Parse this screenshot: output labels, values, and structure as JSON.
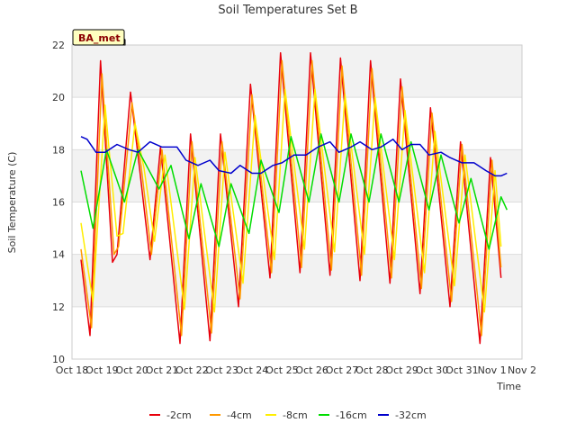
{
  "chart_data": {
    "type": "line",
    "title": "Soil Temperatures Set B",
    "xlabel": "Time",
    "ylabel": "Soil Temperature (C)",
    "badge": "BA_met",
    "ylim": [
      10,
      22
    ],
    "yticks": [
      10,
      12,
      14,
      16,
      18,
      20,
      22
    ],
    "xlim": [
      0,
      15
    ],
    "xticks": [
      {
        "x": 0,
        "label": "Oct 18"
      },
      {
        "x": 1,
        "label": "Oct 19"
      },
      {
        "x": 2,
        "label": "Oct 20"
      },
      {
        "x": 3,
        "label": "Oct 21"
      },
      {
        "x": 4,
        "label": "Oct 22"
      },
      {
        "x": 5,
        "label": "Oct 23"
      },
      {
        "x": 6,
        "label": "Oct 24"
      },
      {
        "x": 7,
        "label": "Oct 25"
      },
      {
        "x": 8,
        "label": "Oct 26"
      },
      {
        "x": 9,
        "label": "Oct 27"
      },
      {
        "x": 10,
        "label": "Oct 28"
      },
      {
        "x": 11,
        "label": "Oct 29"
      },
      {
        "x": 12,
        "label": "Oct 30"
      },
      {
        "x": 13,
        "label": "Oct 31"
      },
      {
        "x": 14,
        "label": "Nov 1"
      },
      {
        "x": 15,
        "label": "Nov 2"
      }
    ],
    "grid": true,
    "legend_position": "bottom",
    "series": [
      {
        "name": "-2cm",
        "color": "#e8000b",
        "points": [
          [
            0.3,
            13.8
          ],
          [
            0.6,
            10.9
          ],
          [
            0.95,
            21.4
          ],
          [
            1.35,
            13.7
          ],
          [
            1.5,
            14.0
          ],
          [
            1.95,
            20.2
          ],
          [
            2.25,
            17.3
          ],
          [
            2.6,
            13.8
          ],
          [
            2.95,
            18.1
          ],
          [
            3.6,
            10.6
          ],
          [
            3.95,
            18.6
          ],
          [
            4.6,
            10.7
          ],
          [
            4.95,
            18.6
          ],
          [
            5.55,
            12.0
          ],
          [
            5.95,
            20.5
          ],
          [
            6.6,
            13.1
          ],
          [
            6.95,
            21.7
          ],
          [
            7.6,
            13.3
          ],
          [
            7.95,
            21.7
          ],
          [
            8.6,
            13.2
          ],
          [
            8.95,
            21.5
          ],
          [
            9.6,
            13.0
          ],
          [
            9.95,
            21.4
          ],
          [
            10.6,
            12.9
          ],
          [
            10.95,
            20.7
          ],
          [
            11.6,
            12.5
          ],
          [
            11.95,
            19.6
          ],
          [
            12.6,
            12.0
          ],
          [
            12.95,
            18.3
          ],
          [
            13.6,
            10.6
          ],
          [
            13.95,
            17.7
          ],
          [
            14.3,
            13.1
          ]
        ]
      },
      {
        "name": "-4cm",
        "color": "#ff9900",
        "points": [
          [
            0.3,
            14.2
          ],
          [
            0.65,
            11.2
          ],
          [
            1.0,
            20.9
          ],
          [
            1.4,
            14.0
          ],
          [
            1.55,
            14.3
          ],
          [
            2.0,
            19.8
          ],
          [
            2.3,
            17.4
          ],
          [
            2.65,
            14.0
          ],
          [
            3.0,
            18.0
          ],
          [
            3.65,
            10.9
          ],
          [
            4.0,
            18.3
          ],
          [
            4.65,
            11.0
          ],
          [
            5.0,
            18.3
          ],
          [
            5.6,
            12.3
          ],
          [
            6.0,
            20.1
          ],
          [
            6.65,
            13.3
          ],
          [
            7.0,
            21.4
          ],
          [
            7.65,
            13.5
          ],
          [
            8.0,
            21.4
          ],
          [
            8.65,
            13.4
          ],
          [
            9.0,
            21.2
          ],
          [
            9.65,
            13.2
          ],
          [
            10.0,
            21.1
          ],
          [
            10.65,
            13.1
          ],
          [
            11.0,
            20.4
          ],
          [
            11.65,
            12.7
          ],
          [
            12.0,
            19.4
          ],
          [
            12.65,
            12.2
          ],
          [
            13.0,
            18.2
          ],
          [
            13.65,
            10.9
          ],
          [
            14.0,
            17.6
          ],
          [
            14.3,
            13.5
          ]
        ]
      },
      {
        "name": "-8cm",
        "color": "#ffee00",
        "points": [
          [
            0.3,
            15.2
          ],
          [
            0.7,
            12.2
          ],
          [
            1.1,
            19.7
          ],
          [
            1.5,
            14.7
          ],
          [
            1.7,
            14.8
          ],
          [
            2.1,
            19.0
          ],
          [
            2.4,
            17.3
          ],
          [
            2.75,
            14.5
          ],
          [
            3.1,
            17.8
          ],
          [
            3.75,
            11.9
          ],
          [
            4.1,
            17.7
          ],
          [
            4.75,
            11.8
          ],
          [
            5.1,
            17.9
          ],
          [
            5.7,
            12.9
          ],
          [
            6.1,
            19.3
          ],
          [
            6.75,
            13.8
          ],
          [
            7.1,
            20.3
          ],
          [
            7.75,
            14.2
          ],
          [
            8.1,
            20.3
          ],
          [
            8.75,
            14.1
          ],
          [
            9.1,
            20.1
          ],
          [
            9.75,
            14.0
          ],
          [
            10.1,
            20.0
          ],
          [
            10.75,
            13.8
          ],
          [
            11.1,
            19.5
          ],
          [
            11.75,
            13.3
          ],
          [
            12.1,
            18.7
          ],
          [
            12.75,
            12.8
          ],
          [
            13.1,
            17.8
          ],
          [
            13.75,
            11.8
          ],
          [
            14.1,
            17.2
          ],
          [
            14.3,
            14.3
          ]
        ]
      },
      {
        "name": "-16cm",
        "color": "#00dd00",
        "points": [
          [
            0.3,
            17.2
          ],
          [
            0.7,
            15.0
          ],
          [
            1.15,
            18.0
          ],
          [
            1.75,
            16.0
          ],
          [
            2.2,
            18.0
          ],
          [
            2.9,
            16.5
          ],
          [
            3.3,
            17.4
          ],
          [
            3.9,
            14.6
          ],
          [
            4.3,
            16.7
          ],
          [
            4.9,
            14.3
          ],
          [
            5.3,
            16.7
          ],
          [
            5.9,
            14.8
          ],
          [
            6.3,
            17.6
          ],
          [
            6.9,
            15.6
          ],
          [
            7.3,
            18.5
          ],
          [
            7.9,
            16.0
          ],
          [
            8.3,
            18.6
          ],
          [
            8.9,
            16.0
          ],
          [
            9.3,
            18.6
          ],
          [
            9.9,
            16.0
          ],
          [
            10.3,
            18.6
          ],
          [
            10.9,
            16.0
          ],
          [
            11.3,
            18.3
          ],
          [
            11.9,
            15.7
          ],
          [
            12.3,
            17.8
          ],
          [
            12.9,
            15.2
          ],
          [
            13.3,
            16.9
          ],
          [
            13.9,
            14.2
          ],
          [
            14.3,
            16.2
          ],
          [
            14.5,
            15.7
          ]
        ]
      },
      {
        "name": "-32cm",
        "color": "#0000cc",
        "points": [
          [
            0.3,
            18.5
          ],
          [
            0.5,
            18.4
          ],
          [
            0.8,
            17.9
          ],
          [
            1.1,
            17.9
          ],
          [
            1.5,
            18.2
          ],
          [
            1.9,
            18.0
          ],
          [
            2.2,
            17.9
          ],
          [
            2.6,
            18.3
          ],
          [
            3.0,
            18.1
          ],
          [
            3.5,
            18.1
          ],
          [
            3.8,
            17.6
          ],
          [
            4.2,
            17.4
          ],
          [
            4.6,
            17.6
          ],
          [
            4.9,
            17.2
          ],
          [
            5.3,
            17.1
          ],
          [
            5.6,
            17.4
          ],
          [
            6.0,
            17.1
          ],
          [
            6.3,
            17.1
          ],
          [
            6.7,
            17.4
          ],
          [
            7.0,
            17.5
          ],
          [
            7.4,
            17.8
          ],
          [
            7.8,
            17.8
          ],
          [
            8.2,
            18.1
          ],
          [
            8.6,
            18.3
          ],
          [
            8.9,
            17.9
          ],
          [
            9.3,
            18.1
          ],
          [
            9.6,
            18.3
          ],
          [
            10.0,
            18.0
          ],
          [
            10.3,
            18.1
          ],
          [
            10.7,
            18.4
          ],
          [
            11.0,
            18.0
          ],
          [
            11.3,
            18.2
          ],
          [
            11.6,
            18.2
          ],
          [
            11.9,
            17.8
          ],
          [
            12.3,
            17.9
          ],
          [
            12.6,
            17.7
          ],
          [
            13.0,
            17.5
          ],
          [
            13.4,
            17.5
          ],
          [
            13.8,
            17.2
          ],
          [
            14.1,
            17.0
          ],
          [
            14.3,
            17.0
          ],
          [
            14.5,
            17.1
          ]
        ]
      }
    ]
  }
}
